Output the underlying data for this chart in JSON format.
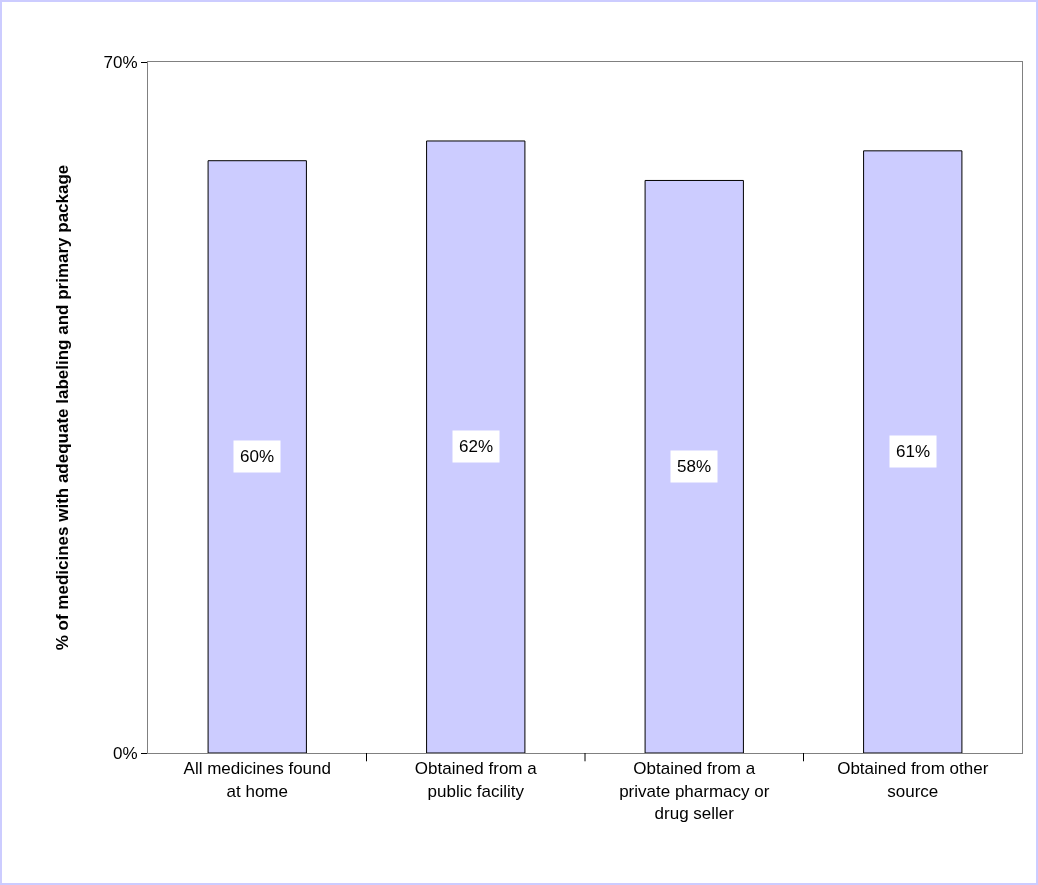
{
  "chart_data": {
    "type": "bar",
    "ylabel": "% of medicines with adequate labeling and primary package",
    "categories": [
      "All medicines found at home",
      "Obtained from a public facility",
      "Obtained from a private pharmacy or drug seller",
      "Obtained from other source"
    ],
    "values": [
      60,
      62,
      58,
      61
    ],
    "value_labels": [
      "60%",
      "62%",
      "58%",
      "61%"
    ],
    "color": "#ccccff",
    "ylim": [
      0,
      70
    ],
    "yticks": [
      {
        "value": 0,
        "label": "0%"
      },
      {
        "value": 70,
        "label": "70%"
      }
    ]
  }
}
